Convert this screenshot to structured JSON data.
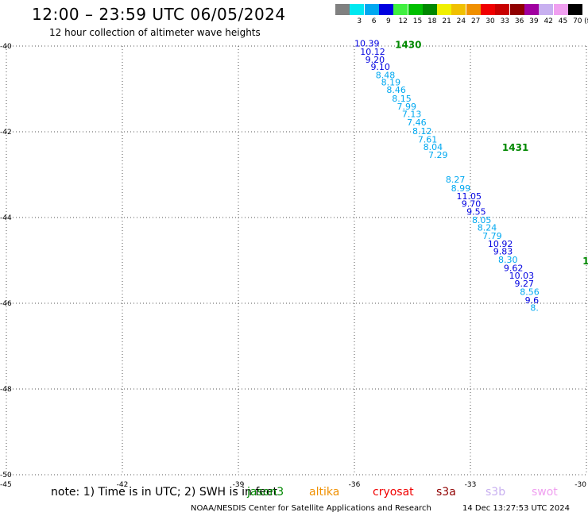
{
  "header": {
    "title": "12:00 – 23:59 UTC 06/05/2024",
    "subtitle": "12 hour collection of altimeter wave heights"
  },
  "legend": {
    "unit": "(ft)",
    "bins": [
      {
        "label": "",
        "color": "#808080"
      },
      {
        "label": "3",
        "color": "#00e8f0"
      },
      {
        "label": "6",
        "color": "#00a8f0"
      },
      {
        "label": "9",
        "color": "#0000e0"
      },
      {
        "label": "12",
        "color": "#40f040"
      },
      {
        "label": "15",
        "color": "#00c000"
      },
      {
        "label": "18",
        "color": "#008800"
      },
      {
        "label": "21",
        "color": "#f0f000"
      },
      {
        "label": "24",
        "color": "#f0c000"
      },
      {
        "label": "27",
        "color": "#f09000"
      },
      {
        "label": "30",
        "color": "#f00000"
      },
      {
        "label": "33",
        "color": "#c80000"
      },
      {
        "label": "36",
        "color": "#900000"
      },
      {
        "label": "39",
        "color": "#a000a0"
      },
      {
        "label": "42",
        "color": "#c8b0f0"
      },
      {
        "label": "45",
        "color": "#f0a0f0"
      },
      {
        "label": "70",
        "color": "#000000"
      }
    ]
  },
  "chart_data": {
    "type": "scatter",
    "title": "12:00 – 23:59 UTC 06/05/2024",
    "subtitle": "12 hour collection of altimeter wave heights",
    "xlim": [
      -45,
      -30
    ],
    "ylim": [
      -50,
      -40
    ],
    "x_ticks": [
      {
        "value": -45,
        "label": "-45"
      },
      {
        "value": -42,
        "label": "-42"
      },
      {
        "value": -39,
        "label": "-39"
      },
      {
        "value": -36,
        "label": "-36"
      },
      {
        "value": -33,
        "label": "-33"
      },
      {
        "value": -30,
        "label": "-30"
      }
    ],
    "y_ticks": [
      {
        "value": -40,
        "label": "-40"
      },
      {
        "value": -42,
        "label": "-42"
      },
      {
        "value": -44,
        "label": "-44"
      },
      {
        "value": -46,
        "label": "-46"
      },
      {
        "value": -48,
        "label": "-48"
      },
      {
        "value": -50,
        "label": "-50"
      }
    ],
    "grid": true,
    "time_labels": [
      {
        "text": "1430",
        "x": -34.95,
        "y": -39.97,
        "color": "#008800"
      },
      {
        "text": "1431",
        "x": -32.18,
        "y": -42.37,
        "color": "#008800"
      },
      {
        "text": "1",
        "x": -30.1,
        "y": -45.02,
        "color": "#008800"
      }
    ],
    "points": [
      {
        "x": -36.0,
        "y": -39.95,
        "value": "10.39",
        "color": "#0000e0"
      },
      {
        "x": -35.85,
        "y": -40.15,
        "value": "10.12",
        "color": "#0000e0"
      },
      {
        "x": -35.72,
        "y": -40.33,
        "value": "9.20",
        "color": "#0000e0"
      },
      {
        "x": -35.58,
        "y": -40.5,
        "value": "9.10",
        "color": "#0000e0"
      },
      {
        "x": -35.45,
        "y": -40.69,
        "value": "8.48",
        "color": "#00a8f0"
      },
      {
        "x": -35.31,
        "y": -40.86,
        "value": "8.19",
        "color": "#00a8f0"
      },
      {
        "x": -35.17,
        "y": -41.04,
        "value": "8.46",
        "color": "#00a8f0"
      },
      {
        "x": -35.03,
        "y": -41.24,
        "value": "8.15",
        "color": "#00a8f0"
      },
      {
        "x": -34.9,
        "y": -41.43,
        "value": "7.99",
        "color": "#00a8f0"
      },
      {
        "x": -34.77,
        "y": -41.6,
        "value": "7.13",
        "color": "#00a8f0"
      },
      {
        "x": -34.64,
        "y": -41.8,
        "value": "7.46",
        "color": "#00a8f0"
      },
      {
        "x": -34.5,
        "y": -42.0,
        "value": "8.12",
        "color": "#00a8f0"
      },
      {
        "x": -34.36,
        "y": -42.19,
        "value": "7.61",
        "color": "#00a8f0"
      },
      {
        "x": -34.22,
        "y": -42.37,
        "value": "8.04",
        "color": "#00a8f0"
      },
      {
        "x": -34.09,
        "y": -42.56,
        "value": "7.29",
        "color": "#00a8f0"
      },
      {
        "x": -33.64,
        "y": -43.13,
        "value": "8.27",
        "color": "#00a8f0"
      },
      {
        "x": -33.5,
        "y": -43.33,
        "value": "8.99",
        "color": "#00a8f0"
      },
      {
        "x": -33.36,
        "y": -43.52,
        "value": "11.05",
        "color": "#0000e0"
      },
      {
        "x": -33.23,
        "y": -43.69,
        "value": "9.70",
        "color": "#0000e0"
      },
      {
        "x": -33.1,
        "y": -43.88,
        "value": "9.55",
        "color": "#0000e0"
      },
      {
        "x": -32.96,
        "y": -44.07,
        "value": "8.05",
        "color": "#00a8f0"
      },
      {
        "x": -32.82,
        "y": -44.25,
        "value": "8.24",
        "color": "#00a8f0"
      },
      {
        "x": -32.69,
        "y": -44.44,
        "value": "7.79",
        "color": "#00a8f0"
      },
      {
        "x": -32.55,
        "y": -44.63,
        "value": "10.92",
        "color": "#0000e0"
      },
      {
        "x": -32.41,
        "y": -44.81,
        "value": "9.83",
        "color": "#0000e0"
      },
      {
        "x": -32.28,
        "y": -45.0,
        "value": "8.30",
        "color": "#00a8f0"
      },
      {
        "x": -32.14,
        "y": -45.19,
        "value": "9.62",
        "color": "#0000e0"
      },
      {
        "x": -32.0,
        "y": -45.37,
        "value": "10.03",
        "color": "#0000e0"
      },
      {
        "x": -31.86,
        "y": -45.56,
        "value": "9.27",
        "color": "#0000e0"
      },
      {
        "x": -31.72,
        "y": -45.75,
        "value": "8.56",
        "color": "#00a8f0"
      },
      {
        "x": -31.59,
        "y": -45.94,
        "value": "9.6",
        "color": "#0000e0"
      },
      {
        "x": -31.45,
        "y": -46.12,
        "value": "8.",
        "color": "#00a8f0"
      }
    ]
  },
  "footer": {
    "note": "note:  1) Time is in UTC;  2) SWH is in feet",
    "missions": [
      {
        "label": "jason3",
        "color": "#008800"
      },
      {
        "label": "altika",
        "color": "#f09000"
      },
      {
        "label": "cryosat",
        "color": "#f00000"
      },
      {
        "label": "s3a",
        "color": "#900000"
      },
      {
        "label": "s3b",
        "color": "#c8b0f0"
      },
      {
        "label": "swot",
        "color": "#f0a0f0"
      }
    ],
    "credit": "NOAA/NESDIS Center for Satellite Applications and Research",
    "timestamp": "14 Dec 13:27:53 UTC 2024"
  }
}
